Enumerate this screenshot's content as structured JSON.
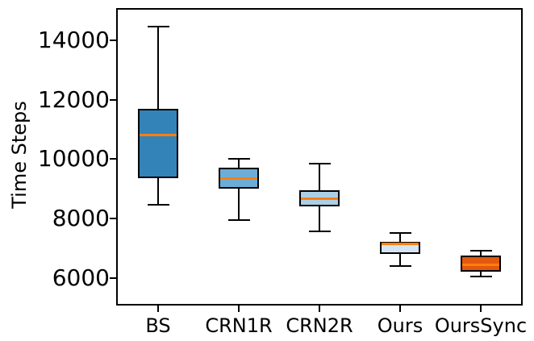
{
  "chart_data": {
    "type": "box",
    "title": "",
    "xlabel": "",
    "ylabel": "Time Steps",
    "categories": [
      "BS",
      "CRN1R",
      "CRN2R",
      "Ours",
      "OursSync"
    ],
    "yticks": [
      6000,
      8000,
      10000,
      12000,
      14000
    ],
    "ylim": [
      5120,
      15030
    ],
    "grid": false,
    "legend": "none",
    "median_color": "#ff7f0e",
    "edge_color": "#000000",
    "series": [
      {
        "label": "BS",
        "whisker_low": 8450,
        "q1": 9350,
        "median": 10800,
        "q3": 11700,
        "whisker_high": 14450,
        "fill": "#3383b8"
      },
      {
        "label": "CRN1R",
        "whisker_low": 7950,
        "q1": 9000,
        "median": 9350,
        "q3": 9700,
        "whisker_high": 10000,
        "fill": "#6badd6"
      },
      {
        "label": "CRN2R",
        "whisker_low": 7550,
        "q1": 8400,
        "median": 8650,
        "q3": 8950,
        "whisker_high": 9850,
        "fill": "#abd0e6"
      },
      {
        "label": "Ours",
        "whisker_low": 6400,
        "q1": 6800,
        "median": 7150,
        "q3": 7200,
        "whisker_high": 7500,
        "fill": "#d5e4f3"
      },
      {
        "label": "OursSync",
        "whisker_low": 6050,
        "q1": 6200,
        "median": 6450,
        "q3": 6750,
        "whisker_high": 6900,
        "fill": "#e4570e"
      }
    ]
  }
}
